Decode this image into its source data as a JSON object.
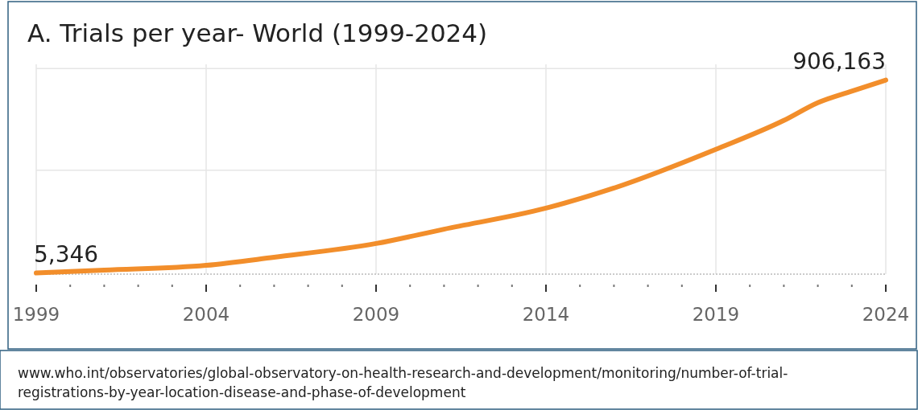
{
  "chart_data": {
    "type": "line",
    "title": "A. Trials per year- World (1999-2024)",
    "x": [
      1999,
      2001,
      2004,
      2006,
      2009,
      2011,
      2014,
      2016,
      2019,
      2021,
      2022,
      2023,
      2024
    ],
    "series": [
      {
        "color": "#f28e2b",
        "values": [
          5346,
          19000,
          41000,
          79000,
          143000,
          210000,
          308000,
          402000,
          583000,
          718000,
          801000,
          855000,
          906163
        ],
        "value_labels": [
          "5,346",
          null,
          null,
          null,
          null,
          null,
          null,
          null,
          null,
          null,
          null,
          null,
          "906,163"
        ]
      }
    ],
    "xlim": [
      1999,
      2024
    ],
    "xticks": [
      1999,
      {
        "value": 2000,
        "label": null
      },
      {
        "value": 2001,
        "label": null
      },
      {
        "value": 2002,
        "label": null
      },
      {
        "value": 2003,
        "label": null
      },
      2004,
      {
        "value": 2005,
        "label": null
      },
      {
        "value": 2006,
        "label": null
      },
      {
        "value": 2007,
        "label": null
      },
      {
        "value": 2008,
        "label": null
      },
      2009,
      {
        "value": 2010,
        "label": null
      },
      {
        "value": 2011,
        "label": null
      },
      {
        "value": 2012,
        "label": null
      },
      {
        "value": 2013,
        "label": null
      },
      2014,
      {
        "value": 2015,
        "label": null
      },
      {
        "value": 2016,
        "label": null
      },
      {
        "value": 2017,
        "label": null
      },
      {
        "value": 2018,
        "label": null
      },
      2019,
      {
        "value": 2020,
        "label": null
      },
      {
        "value": 2021,
        "label": null
      },
      {
        "value": 2022,
        "label": null
      },
      {
        "value": 2023,
        "label": null
      },
      2024
    ],
    "ylim": [
      0,
      980000
    ],
    "yticks": [
      {
        "value": 0,
        "label": null
      },
      {
        "value": 485000,
        "label": null
      },
      {
        "value": 960000,
        "label": null
      }
    ],
    "tick_labels": "x",
    "grid": true,
    "line_style": "solid",
    "marker": "none",
    "annotations": [
      "www.who.int/observatories/global-observatory-on-health-research-and-development/monitoring/number-of-trial-registrations-by-year-location-disease-and-phase-of-development"
    ]
  }
}
